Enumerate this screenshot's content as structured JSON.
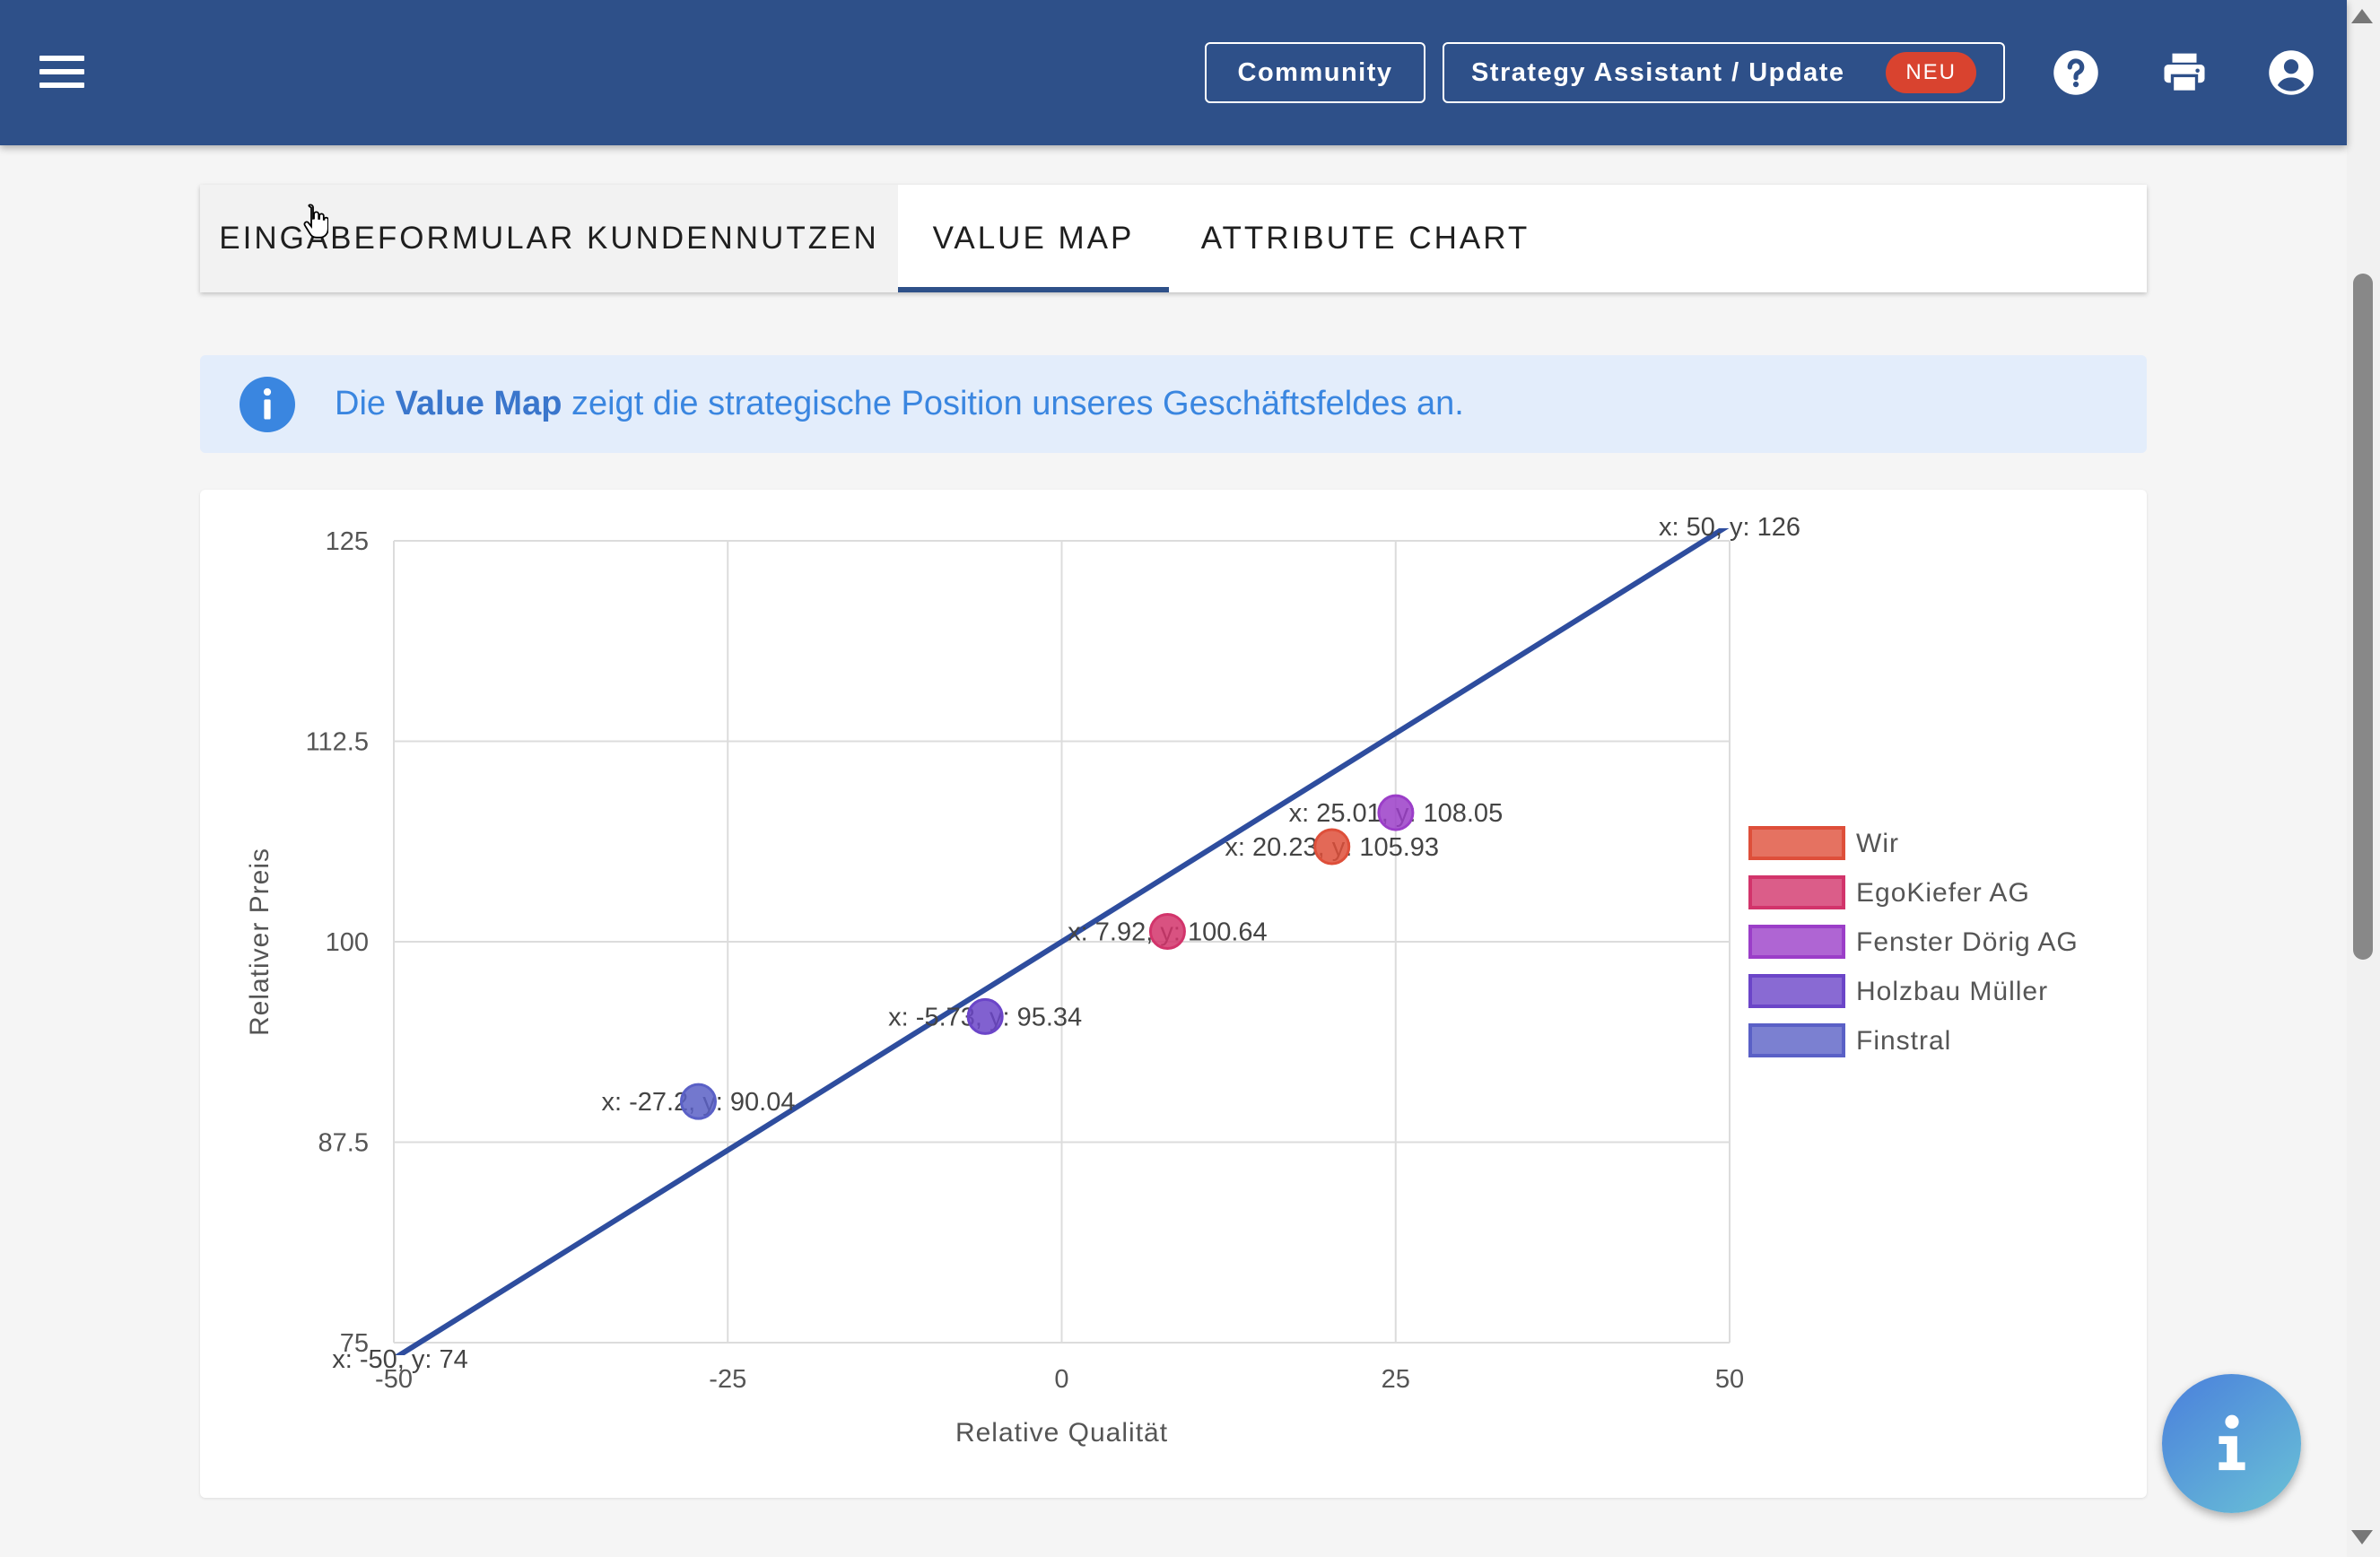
{
  "header": {
    "community_label": "Community",
    "strategy_label": "Strategy Assistant / Update",
    "new_badge": "NEU",
    "icons": [
      "menu-icon",
      "help-icon",
      "print-icon",
      "account-icon"
    ]
  },
  "tabs": [
    {
      "label": "EINGABEFORMULAR KUNDENNUTZEN",
      "active": false
    },
    {
      "label": "VALUE MAP",
      "active": true
    },
    {
      "label": "ATTRIBUTE CHART",
      "active": false
    }
  ],
  "info": {
    "text_before": "Die ",
    "text_bold": "Value Map",
    "text_after": " zeigt die strategische Position unseres Geschäftsfeldes an."
  },
  "chart_data": {
    "type": "scatter",
    "xlabel": "Relative Qualität",
    "ylabel": "Relativer Preis",
    "xlim": [
      -50,
      50
    ],
    "ylim": [
      75,
      125
    ],
    "x_ticks": [
      "-50",
      "-25",
      "0",
      "25",
      "50"
    ],
    "y_ticks": [
      "75",
      "87.5",
      "100",
      "112.5",
      "125"
    ],
    "grid": true,
    "legend_position": "right",
    "series": [
      {
        "name": "Wir",
        "color": "#de4f3a",
        "x": 20.23,
        "y": 105.93,
        "label": "x: 20.23, y: 105.93"
      },
      {
        "name": "EgoKiefer AG",
        "color": "#d2346b",
        "x": 7.92,
        "y": 100.64,
        "label": "x: 7.92, y: 100.64"
      },
      {
        "name": "Fenster Dörig AG",
        "color": "#9b3ec8",
        "x": 25.01,
        "y": 108.05,
        "label": "x: 25.01, y: 108.05"
      },
      {
        "name": "Holzbau Müller",
        "color": "#6b45c8",
        "x": -5.73,
        "y": 95.34,
        "label": "x: -5.73, y: 95.34"
      },
      {
        "name": "Finstral",
        "color": "#5a60c6",
        "x": -27.2,
        "y": 90.04,
        "label": "x: -27.2, y: 90.04"
      }
    ],
    "line": {
      "color": "#2e4d9e",
      "points": [
        [
          -50,
          74
        ],
        [
          50,
          126
        ]
      ],
      "labels": [
        "x: -50, y: 74",
        "x: 50, y: 126"
      ]
    }
  }
}
